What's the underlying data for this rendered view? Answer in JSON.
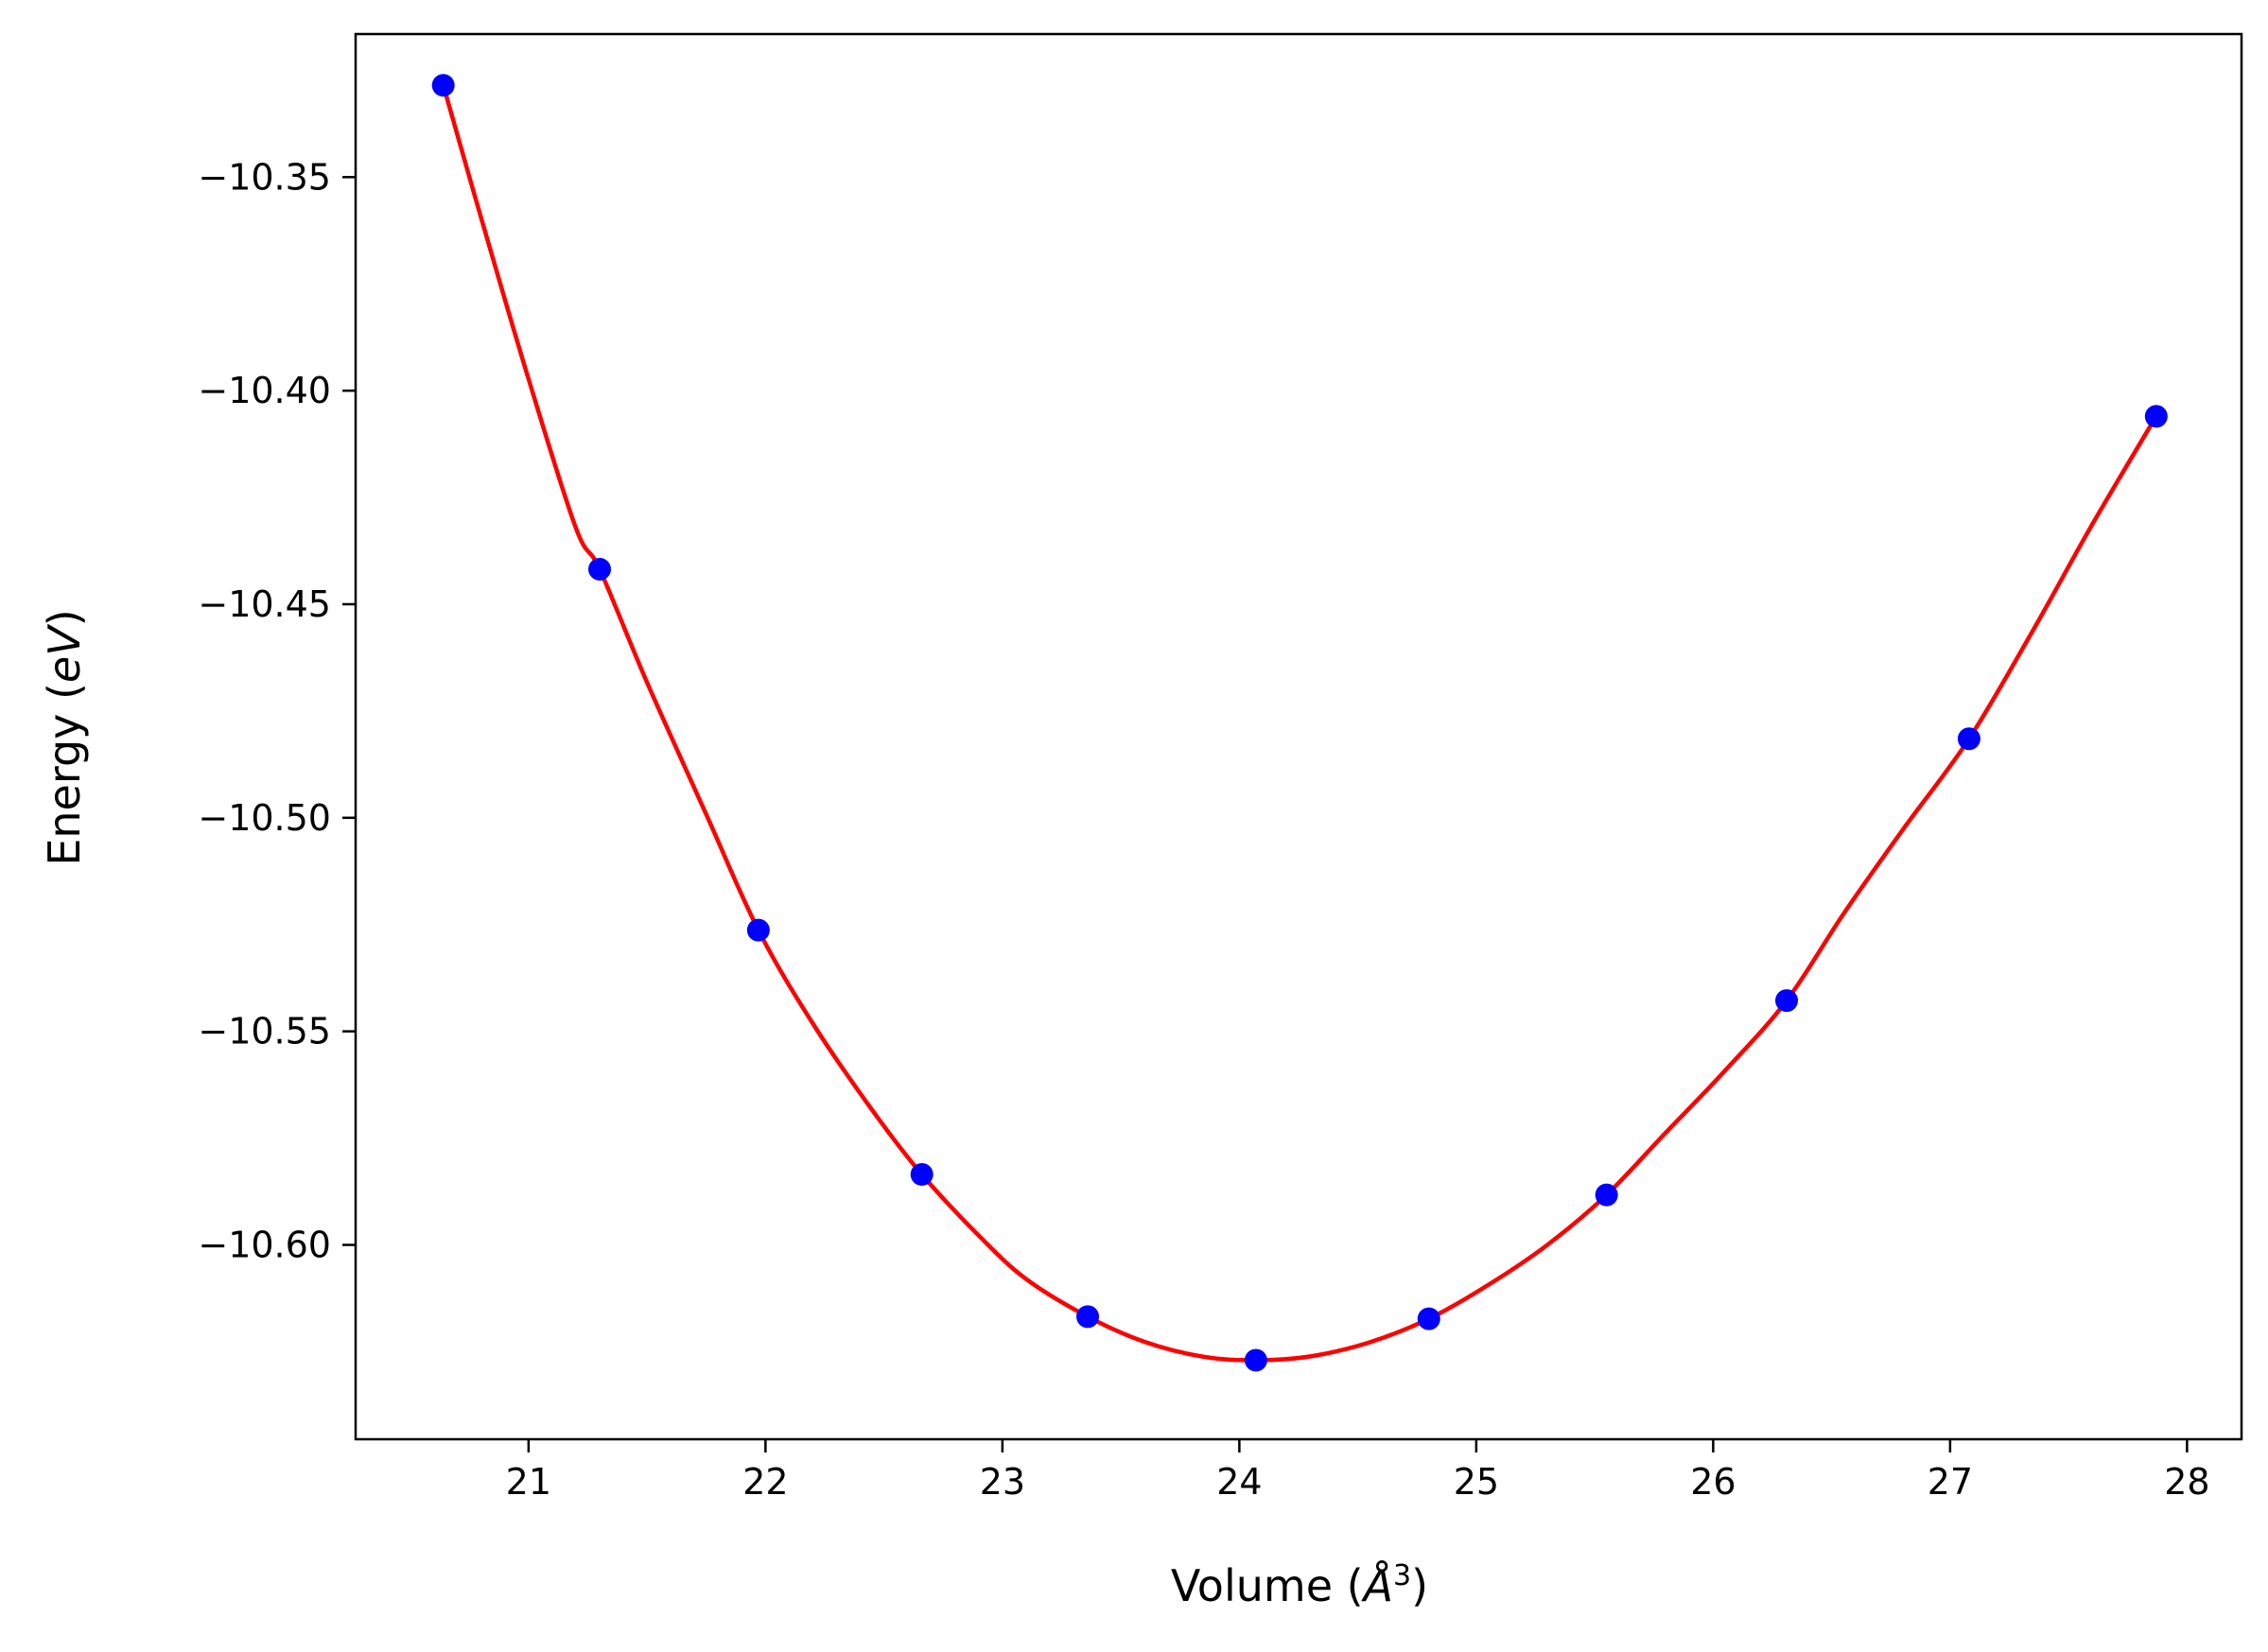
{
  "chart_data": {
    "type": "line",
    "title": "",
    "xlabel": {
      "prefix": "Volume (",
      "symbol": "Å",
      "sup": "3",
      "suffix": ")"
    },
    "ylabel": {
      "prefix": "Energy (",
      "symbol": "eV",
      "suffix": ")"
    },
    "xlim": [
      20.27,
      28.23
    ],
    "ylim": [
      -10.6455,
      -10.3165
    ],
    "x_ticks": [
      21,
      22,
      23,
      24,
      25,
      26,
      27,
      28
    ],
    "y_ticks": [
      -10.6,
      -10.55,
      -10.5,
      -10.45,
      -10.4,
      -10.35
    ],
    "y_tick_labels": [
      "−10.60",
      "−10.55",
      "−10.50",
      "−10.45",
      "−10.40",
      "−10.35"
    ],
    "grid": false,
    "legend": "none",
    "colors": {
      "points": "#0000ff",
      "fit": "#ff0000",
      "axes": "#000000"
    },
    "series": [
      {
        "kind": "scatter",
        "color": "#0000ff",
        "x": [
          20.64,
          21.3,
          21.97,
          22.66,
          23.36,
          24.07,
          24.8,
          25.55,
          26.31,
          27.08,
          27.87
        ],
        "y": [
          -10.3285,
          -10.4418,
          -10.5263,
          -10.5835,
          -10.6168,
          -10.627,
          -10.6173,
          -10.5883,
          -10.5428,
          -10.4815,
          -10.406
        ]
      },
      {
        "kind": "line",
        "color": "#ff0000",
        "x": [
          20.64,
          20.8,
          21.0,
          21.2,
          21.3,
          21.5,
          21.75,
          21.97,
          22.2,
          22.45,
          22.66,
          22.9,
          23.1,
          23.36,
          23.6,
          23.85,
          24.07,
          24.3,
          24.55,
          24.8,
          25.05,
          25.3,
          25.55,
          25.8,
          26.05,
          26.31,
          26.55,
          26.8,
          27.08,
          27.35,
          27.6,
          27.87
        ],
        "y": [
          -10.3285,
          -10.3596,
          -10.3973,
          -10.4322,
          -10.4418,
          -10.4683,
          -10.4992,
          -10.5263,
          -10.5482,
          -10.5684,
          -10.5835,
          -10.5978,
          -10.608,
          -10.6168,
          -10.6227,
          -10.6262,
          -10.627,
          -10.6261,
          -10.6228,
          -10.6173,
          -10.6094,
          -10.6,
          -10.5883,
          -10.5737,
          -10.5592,
          -10.5428,
          -10.5225,
          -10.5028,
          -10.4815,
          -10.4561,
          -10.4313,
          -10.406
        ]
      }
    ]
  }
}
